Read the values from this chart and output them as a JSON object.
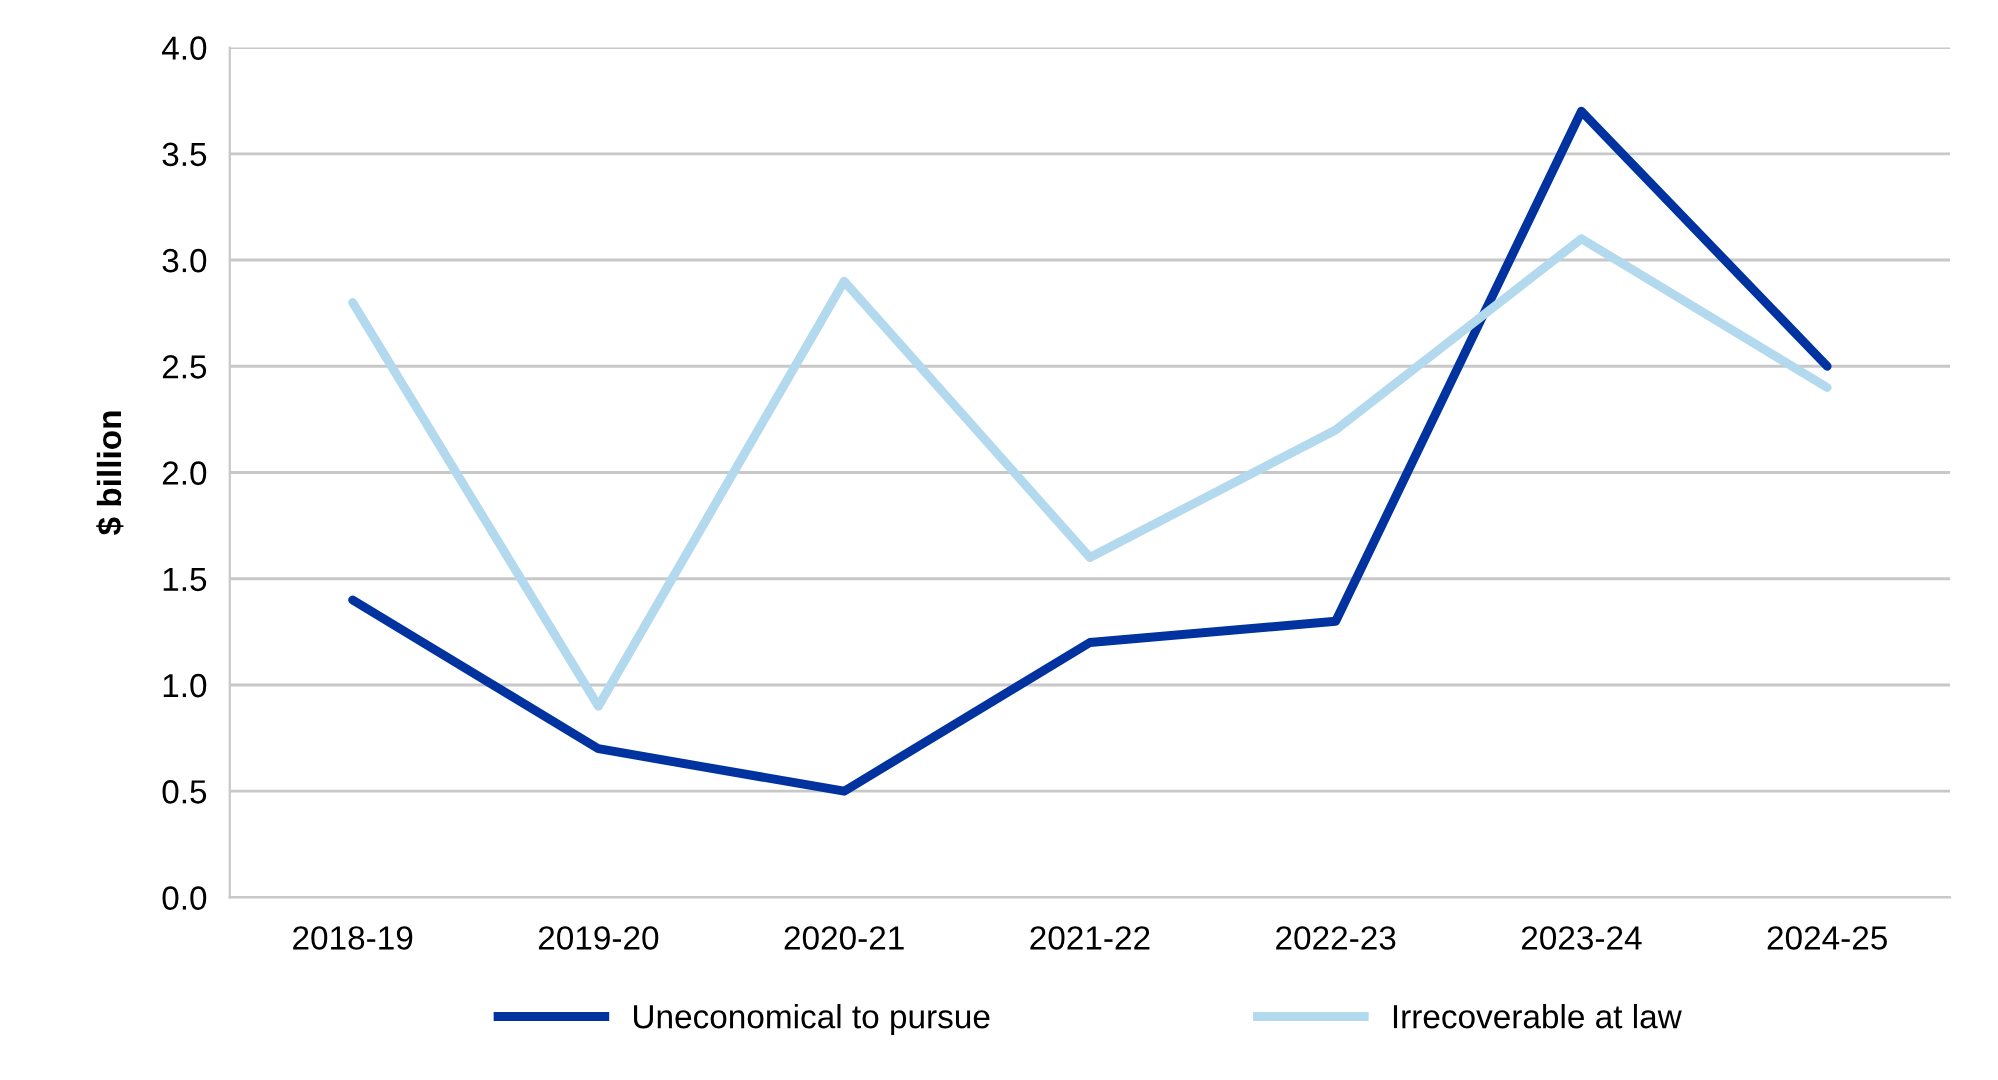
{
  "chart_data": {
    "type": "line",
    "ylabel": "$ billion",
    "categories": [
      "2018-19",
      "2019-20",
      "2020-21",
      "2021-22",
      "2022-23",
      "2023-24",
      "2024-25"
    ],
    "series": [
      {
        "name": "Uneconomical to pursue",
        "color": "#0033a0",
        "values": [
          1.4,
          0.7,
          0.5,
          1.2,
          1.3,
          3.7,
          2.5
        ]
      },
      {
        "name": "Irrecoverable at law",
        "color": "#b3d9ee",
        "values": [
          2.8,
          0.9,
          2.9,
          1.6,
          2.2,
          3.1,
          2.4
        ]
      }
    ],
    "ylim": [
      0,
      4.0
    ],
    "yticks": [
      {
        "value": 0,
        "label": "0.0"
      },
      {
        "value": 0.5,
        "label": "0.5"
      },
      {
        "value": 1.0,
        "label": "1.0"
      },
      {
        "value": 1.5,
        "label": "1.5"
      },
      {
        "value": 2.0,
        "label": "2.0"
      },
      {
        "value": 2.5,
        "label": "2.5"
      },
      {
        "value": 3.0,
        "label": "3.0"
      },
      {
        "value": 3.5,
        "label": "3.5"
      },
      {
        "value": 4.0,
        "label": "4.0"
      }
    ],
    "grid": "y",
    "legend": "bottom",
    "marker": "none",
    "line_style": "solid"
  }
}
